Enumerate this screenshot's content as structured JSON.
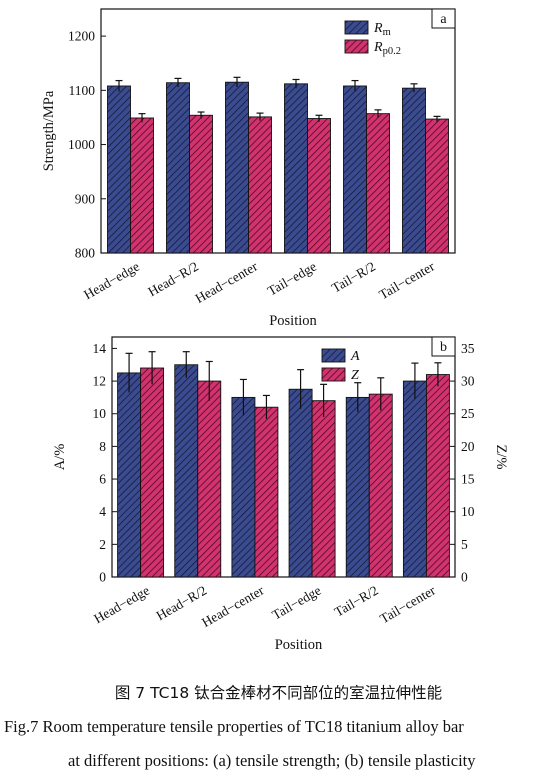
{
  "chart_data": [
    {
      "type": "bar",
      "panel_label": "a",
      "categories": [
        "Head−edge",
        "Head−R/2",
        "Head−center",
        "Tail−edge",
        "Tail−R/2",
        "Tail−center"
      ],
      "xlabel": "Position",
      "ylabel": "Strength/MPa",
      "ylim": [
        800,
        1250
      ],
      "yticks": [
        800,
        900,
        1000,
        1100,
        1200
      ],
      "series": [
        {
          "name": "Rm",
          "name_base": "R",
          "name_sub": "m",
          "color": "#3b4b8f",
          "values": [
            1108,
            1114,
            1115,
            1112,
            1108,
            1104
          ],
          "errors": [
            10,
            8,
            9,
            8,
            10,
            8
          ]
        },
        {
          "name": "Rp0.2",
          "name_base": "R",
          "name_sub": "p0.2",
          "color": "#d2336e",
          "values": [
            1049,
            1054,
            1051,
            1048,
            1057,
            1047
          ],
          "errors": [
            8,
            6,
            7,
            6,
            7,
            5
          ]
        }
      ],
      "legend": "top-right",
      "grid": false
    },
    {
      "type": "bar",
      "panel_label": "b",
      "categories": [
        "Head−edge",
        "Head−R/2",
        "Head−center",
        "Tail−edge",
        "Tail−R/2",
        "Tail−center"
      ],
      "xlabel": "Position",
      "ylabel": "A/%",
      "ylabel_right": "Z/%",
      "ylim": [
        0,
        14.7
      ],
      "yticks": [
        0,
        2,
        4,
        6,
        8,
        10,
        12,
        14
      ],
      "ylim_right": [
        0,
        36.75
      ],
      "yticks_right": [
        0,
        5,
        10,
        15,
        20,
        25,
        30,
        35
      ],
      "series": [
        {
          "name": "A",
          "axis": "left",
          "color": "#3b4b8f",
          "values": [
            12.5,
            13.0,
            11.0,
            11.5,
            11.0,
            12.0
          ],
          "errors": [
            1.2,
            0.8,
            1.1,
            1.2,
            0.9,
            1.1
          ]
        },
        {
          "name": "Z",
          "axis": "right",
          "color": "#d2336e",
          "values": [
            32.0,
            30.0,
            26.0,
            27.0,
            28.0,
            31.0
          ],
          "errors": [
            2.5,
            3.0,
            1.8,
            2.5,
            2.5,
            1.8
          ]
        }
      ],
      "legend": "top-right",
      "grid": false
    }
  ],
  "captions": {
    "cn": "图 7    TC18 钛合金棒材不同部位的室温拉伸性能",
    "en_line1": "Fig.7    Room temperature tensile properties of TC18 titanium alloy bar",
    "en_line2": "at different positions: (a) tensile strength; (b) tensile plasticity"
  }
}
